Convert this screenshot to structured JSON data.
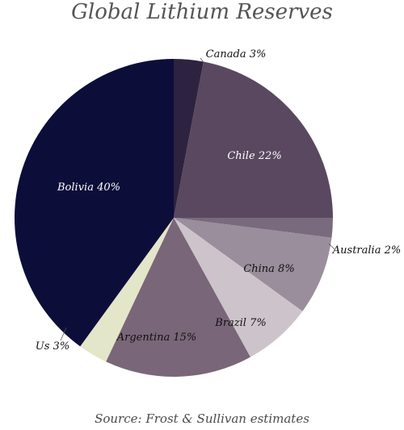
{
  "title": "Global Lithium Reserves",
  "source": "Source: Frost & Sullivan estimates",
  "chart_data": {
    "type": "pie",
    "title": "Global Lithium Reserves",
    "start_angle_deg": 0,
    "direction": "clockwise",
    "slices": [
      {
        "label": "Canada 3%",
        "name": "Canada",
        "value": 3,
        "color": "#2d2340",
        "label_color": "#111111"
      },
      {
        "label": "Chile 22%",
        "name": "Chile",
        "value": 22,
        "color": "#5a4860",
        "label_color": "#ffffff"
      },
      {
        "label": "Australia 2%",
        "name": "Australia",
        "value": 2,
        "color": "#7a6a7e",
        "label_color": "#111111"
      },
      {
        "label": "China 8%",
        "name": "China",
        "value": 8,
        "color": "#9a8d9c",
        "label_color": "#111111"
      },
      {
        "label": "Brazil 7%",
        "name": "Brazil",
        "value": 7,
        "color": "#cdc4cb",
        "label_color": "#111111"
      },
      {
        "label": "Argentina 15%",
        "name": "Argentina",
        "value": 15,
        "color": "#7a6679",
        "label_color": "#111111"
      },
      {
        "label": "Us 3%",
        "name": "Us",
        "value": 3,
        "color": "#e3e6c8",
        "label_color": "#111111"
      },
      {
        "label": "Bolivia 40%",
        "name": "Bolivia",
        "value": 40,
        "color": "#0d0d3a",
        "label_color": "#ffffff"
      }
    ]
  }
}
